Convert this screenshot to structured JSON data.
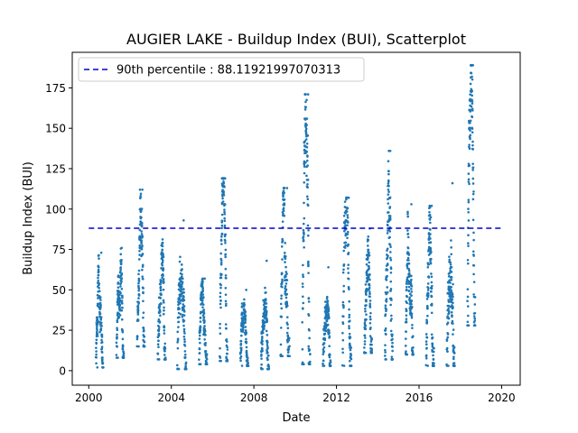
{
  "chart_data": {
    "type": "scatter",
    "title": "AUGIER LAKE - Buildup Index (BUI), Scatterplot",
    "xlabel": "Date",
    "ylabel": "Buildup Index (BUI)",
    "xlim": [
      1999.2,
      2020.9
    ],
    "ylim": [
      -9.0,
      197.0
    ],
    "x_ticks": [
      2000,
      2004,
      2008,
      2012,
      2016,
      2020
    ],
    "y_ticks": [
      0,
      25,
      50,
      75,
      100,
      125,
      150,
      175
    ],
    "grid": false,
    "legend_position": "upper-left",
    "point_color": "#1f77b4",
    "reference_line": {
      "label": "90th percentile : 88.11921997070313",
      "value": 88.11921997070313,
      "x_range": [
        2000.0,
        2020.0
      ],
      "color": "#0000cc",
      "style": "dashed"
    },
    "seasons": [
      {
        "year": 2000,
        "start": 2000.35,
        "end": 2000.7,
        "min": 2,
        "max": 73
      },
      {
        "year": 2001,
        "start": 2001.35,
        "end": 2001.7,
        "min": 8,
        "max": 76
      },
      {
        "year": 2002,
        "start": 2002.35,
        "end": 2002.7,
        "min": 15,
        "max": 112
      },
      {
        "year": 2003,
        "start": 2003.35,
        "end": 2003.72,
        "min": 7,
        "max": 88
      },
      {
        "year": 2004,
        "start": 2004.3,
        "end": 2004.72,
        "min": 1,
        "max": 93
      },
      {
        "year": 2005,
        "start": 2005.35,
        "end": 2005.72,
        "min": 4,
        "max": 57
      },
      {
        "year": 2006,
        "start": 2006.35,
        "end": 2006.72,
        "min": 6,
        "max": 119
      },
      {
        "year": 2007,
        "start": 2007.35,
        "end": 2007.72,
        "min": 3,
        "max": 50
      },
      {
        "year": 2008,
        "start": 2008.35,
        "end": 2008.72,
        "min": 1,
        "max": 68
      },
      {
        "year": 2009,
        "start": 2009.3,
        "end": 2009.72,
        "min": 9,
        "max": 113
      },
      {
        "year": 2010,
        "start": 2010.35,
        "end": 2010.72,
        "min": 4,
        "max": 171
      },
      {
        "year": 2011,
        "start": 2011.35,
        "end": 2011.72,
        "min": 3,
        "max": 64
      },
      {
        "year": 2012,
        "start": 2012.3,
        "end": 2012.72,
        "min": 3,
        "max": 107
      },
      {
        "year": 2013,
        "start": 2013.35,
        "end": 2013.72,
        "min": 11,
        "max": 88
      },
      {
        "year": 2014,
        "start": 2014.35,
        "end": 2014.72,
        "min": 7,
        "max": 136
      },
      {
        "year": 2015,
        "start": 2015.35,
        "end": 2015.72,
        "min": 10,
        "max": 103
      },
      {
        "year": 2016,
        "start": 2016.35,
        "end": 2016.72,
        "min": 3,
        "max": 102
      },
      {
        "year": 2017,
        "start": 2017.35,
        "end": 2017.72,
        "min": 3,
        "max": 116
      },
      {
        "year": 2018,
        "start": 2018.35,
        "end": 2018.72,
        "min": 28,
        "max": 189
      }
    ]
  }
}
